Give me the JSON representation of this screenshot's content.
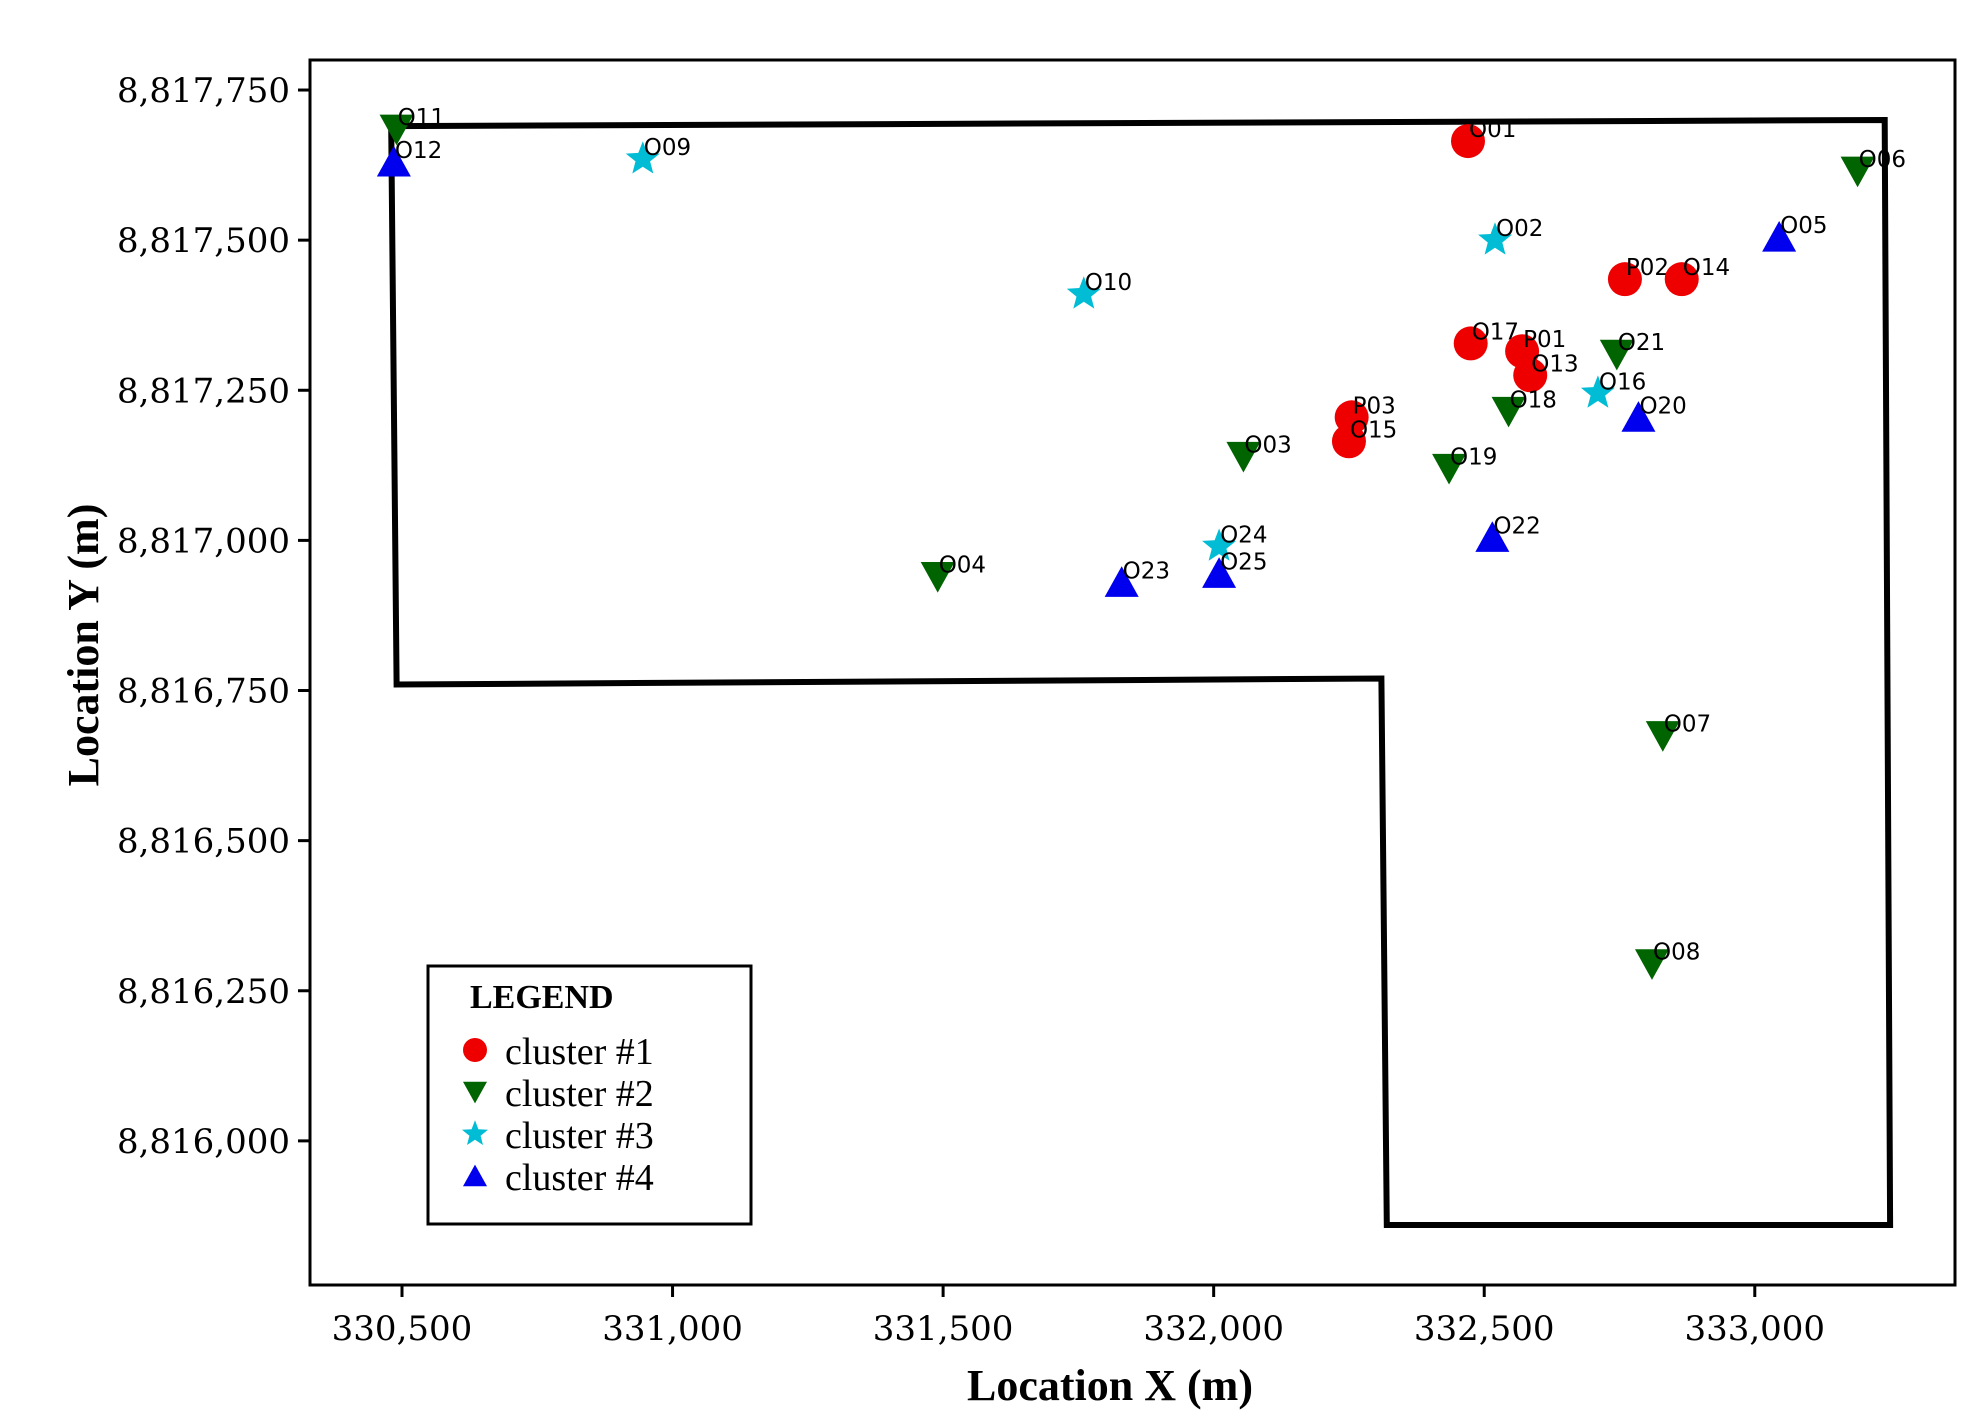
{
  "chart_data": {
    "type": "scatter",
    "xlabel": "Location X (m)",
    "ylabel": "Location Y (m)",
    "xlim": [
      330330,
      333370
    ],
    "ylim": [
      8815760,
      8817800
    ],
    "x_ticks": [
      330500,
      331000,
      331500,
      332000,
      332500,
      333000
    ],
    "x_tick_labels": [
      "330,500",
      "331,000",
      "331,500",
      "332,000",
      "332,500",
      "333,000"
    ],
    "y_ticks": [
      8816000,
      8816250,
      8816500,
      8816750,
      8817000,
      8817250,
      8817500,
      8817750
    ],
    "y_tick_labels": [
      "8,816,000",
      "8,816,250",
      "8,816,500",
      "8,816,750",
      "8,817,000",
      "8,817,250",
      "8,817,500",
      "8,817,750"
    ],
    "grid": false,
    "boundary": [
      [
        330480,
        8817690
      ],
      [
        333240,
        8817700
      ],
      [
        333250,
        8815860
      ],
      [
        332320,
        8815860
      ],
      [
        332310,
        8816770
      ],
      [
        330490,
        8816760
      ],
      [
        330480,
        8817690
      ]
    ],
    "legend": {
      "title": "LEGEND",
      "position": "bottom-left",
      "entries": [
        {
          "label": "cluster #1",
          "marker": "circle",
          "color": "#ee0000"
        },
        {
          "label": "cluster #2",
          "marker": "triangle-down",
          "color": "#006400"
        },
        {
          "label": "cluster #3",
          "marker": "star",
          "color": "#00bcd4"
        },
        {
          "label": "cluster #4",
          "marker": "triangle-up",
          "color": "#0000ee"
        }
      ]
    },
    "series": [
      {
        "name": "cluster #1",
        "points": [
          {
            "label": "O01",
            "x": 332470,
            "y": 8817665
          },
          {
            "label": "P02",
            "x": 332760,
            "y": 8817435
          },
          {
            "label": "O14",
            "x": 332865,
            "y": 8817435
          },
          {
            "label": "O17",
            "x": 332475,
            "y": 8817328
          },
          {
            "label": "P01",
            "x": 332570,
            "y": 8817315
          },
          {
            "label": "O13",
            "x": 332585,
            "y": 8817275
          },
          {
            "label": "P03",
            "x": 332255,
            "y": 8817205
          },
          {
            "label": "O15",
            "x": 332250,
            "y": 8817165
          }
        ]
      },
      {
        "name": "cluster #2",
        "points": [
          {
            "label": "O11",
            "x": 330490,
            "y": 8817685
          },
          {
            "label": "O06",
            "x": 333190,
            "y": 8817615
          },
          {
            "label": "O21",
            "x": 332745,
            "y": 8817310
          },
          {
            "label": "O18",
            "x": 332545,
            "y": 8817215
          },
          {
            "label": "O03",
            "x": 332055,
            "y": 8817140
          },
          {
            "label": "O19",
            "x": 332435,
            "y": 8817120
          },
          {
            "label": "O04",
            "x": 331490,
            "y": 8816940
          },
          {
            "label": "O07",
            "x": 332830,
            "y": 8816675
          },
          {
            "label": "O08",
            "x": 332810,
            "y": 8816295
          }
        ]
      },
      {
        "name": "cluster #3",
        "points": [
          {
            "label": "O09",
            "x": 330945,
            "y": 8817635
          },
          {
            "label": "O02",
            "x": 332520,
            "y": 8817500
          },
          {
            "label": "O10",
            "x": 331760,
            "y": 8817410
          },
          {
            "label": "O16",
            "x": 332710,
            "y": 8817245
          },
          {
            "label": "O24",
            "x": 332010,
            "y": 8816990
          }
        ]
      },
      {
        "name": "cluster #4",
        "points": [
          {
            "label": "O12",
            "x": 330485,
            "y": 8817630
          },
          {
            "label": "O05",
            "x": 333045,
            "y": 8817505
          },
          {
            "label": "O20",
            "x": 332785,
            "y": 8817205
          },
          {
            "label": "O22",
            "x": 332515,
            "y": 8817005
          },
          {
            "label": "O25",
            "x": 332010,
            "y": 8816945
          },
          {
            "label": "O23",
            "x": 331830,
            "y": 8816930
          }
        ]
      }
    ]
  }
}
